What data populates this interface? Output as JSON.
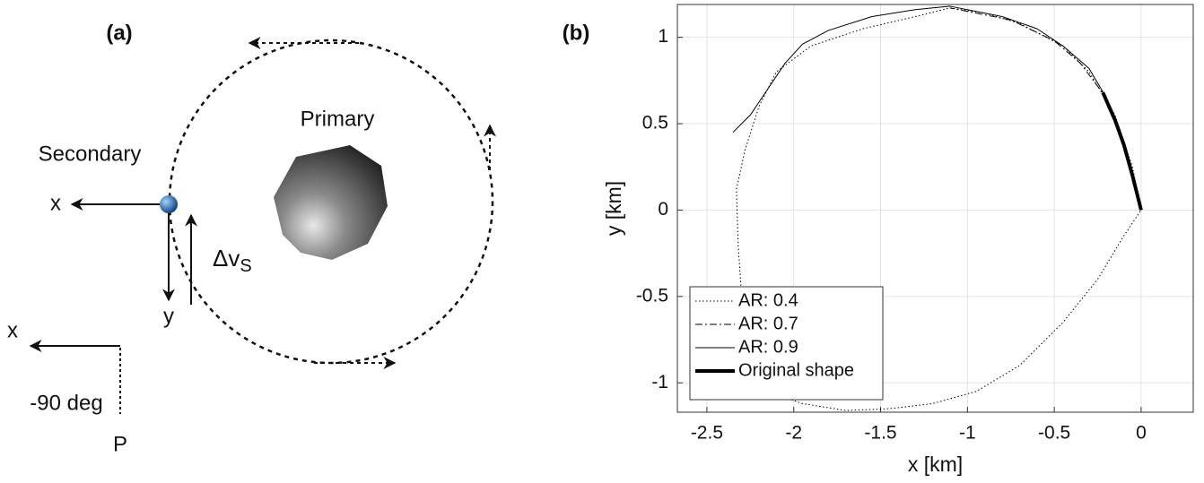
{
  "diagram": {
    "label": "(a)",
    "primary": "Primary",
    "secondary": "Secondary",
    "secondary_x": "x",
    "secondary_y": "y",
    "delta_v": "Δv",
    "delta_v_sub": "S",
    "frame_x": "x",
    "angle": "-90 deg",
    "frame_origin": "P"
  },
  "chart_data": {
    "type": "line",
    "title": "(b)",
    "xlabel": "x [km]",
    "ylabel": "y [km]",
    "xlim": [
      -2.67,
      0.3
    ],
    "ylim": [
      -1.17,
      1.19
    ],
    "xticks": [
      -2.5,
      -2,
      -1.5,
      -1,
      -0.5,
      0
    ],
    "yticks": [
      -1,
      -0.5,
      0,
      0.5,
      1
    ],
    "grid": true,
    "legend": "lower left",
    "series": [
      {
        "name": "AR: 0.4",
        "color": "#000000",
        "linestyle": "dotted",
        "linewidth": 1,
        "x": [
          0,
          -0.05,
          -0.15,
          -0.3,
          -0.45,
          -0.7,
          -0.9,
          -1.1,
          -1.3,
          -1.6,
          -1.9,
          -2.1,
          -2.2,
          -2.28,
          -2.33,
          -2.32,
          -2.3,
          -2.28,
          -2.25,
          -2.15,
          -1.95,
          -1.7,
          -1.45,
          -1.2,
          -0.95,
          -0.7,
          -0.45,
          -0.25,
          -0.1,
          0
        ],
        "values": [
          0,
          0.25,
          0.55,
          0.8,
          0.95,
          1.08,
          1.14,
          1.17,
          1.12,
          1.05,
          0.95,
          0.8,
          0.6,
          0.35,
          0.12,
          -0.2,
          -0.5,
          -0.75,
          -0.95,
          -1.05,
          -1.12,
          -1.16,
          -1.15,
          -1.12,
          -1.05,
          -0.9,
          -0.65,
          -0.4,
          -0.15,
          0
        ]
      },
      {
        "name": "AR: 0.7",
        "color": "#000000",
        "linestyle": "dashdot",
        "linewidth": 1,
        "x": [
          0,
          -0.08,
          -0.2,
          -0.35,
          -0.5,
          -0.75,
          -1.1
        ],
        "values": [
          0,
          0.3,
          0.65,
          0.85,
          0.98,
          1.1,
          1.17
        ]
      },
      {
        "name": "AR: 0.9",
        "color": "#000000",
        "linestyle": "solid",
        "linewidth": 1,
        "x": [
          0,
          -0.1,
          -0.2,
          -0.3,
          -0.45,
          -0.6,
          -0.8,
          -1.1,
          -1.3,
          -1.55,
          -1.8,
          -1.95,
          -2.05,
          -2.15,
          -2.25,
          -2.35
        ],
        "values": [
          0,
          0.4,
          0.65,
          0.82,
          0.95,
          1.05,
          1.12,
          1.18,
          1.16,
          1.12,
          1.04,
          0.96,
          0.85,
          0.7,
          0.55,
          0.45
        ]
      },
      {
        "name": "Original shape",
        "color": "#000000",
        "linestyle": "solid",
        "linewidth": 4,
        "x": [
          0,
          -0.05,
          -0.1,
          -0.15,
          -0.22
        ],
        "values": [
          0,
          0.2,
          0.38,
          0.52,
          0.68
        ]
      }
    ]
  }
}
